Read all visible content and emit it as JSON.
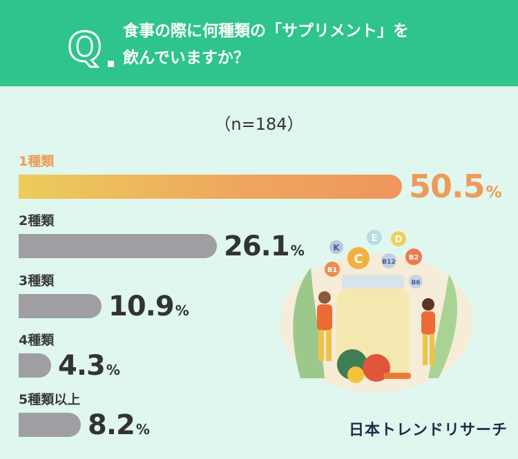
{
  "header": {
    "badge": "Q.",
    "question_line1": "食事の際に何種類の「サプリメント」を",
    "question_line2": "飲んでいますか？"
  },
  "sample_size": "（n=184）",
  "chart_data": {
    "type": "bar",
    "orientation": "horizontal",
    "categories": [
      "1種類",
      "2種類",
      "3種類",
      "4種類",
      "5種類以上"
    ],
    "values": [
      50.5,
      26.1,
      10.9,
      4.3,
      8.2
    ],
    "unit": "%",
    "highlight_index": 0,
    "colors": {
      "highlight_start": "#eccc5b",
      "highlight_end": "#ee965c",
      "default": "#9e9ea3"
    }
  },
  "illustration": {
    "vitamin_labels": [
      "K",
      "E",
      "D",
      "C",
      "B1",
      "B12",
      "B2",
      "B6"
    ]
  },
  "brand": "日本トレンドリサーチ"
}
